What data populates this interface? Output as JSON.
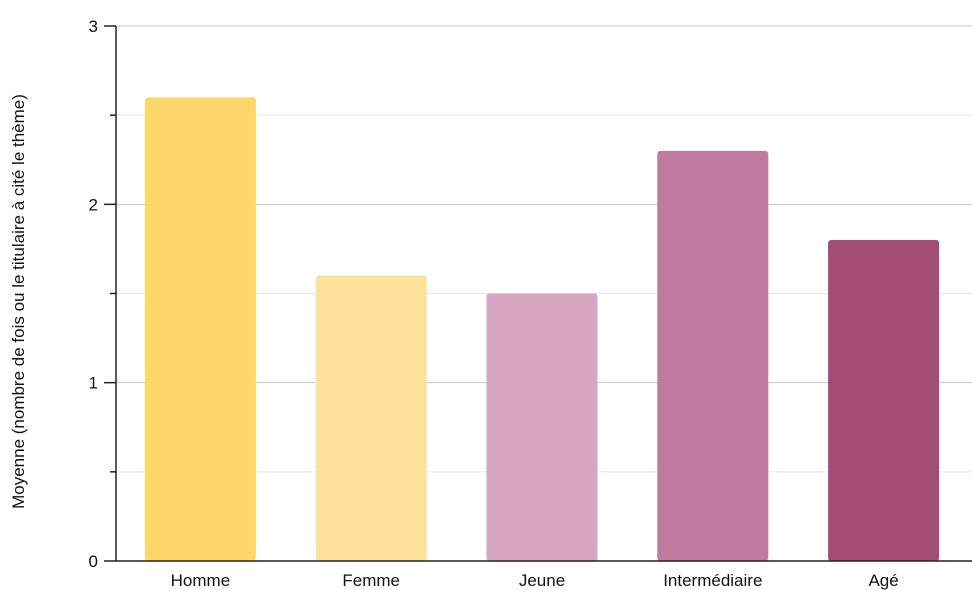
{
  "chart_data": {
    "type": "bar",
    "title": "",
    "xlabel": "",
    "ylabel": "Moyenne (nombre de fois ou le titulaire à cité le thème)",
    "categories": [
      "Homme",
      "Femme",
      "Jeune",
      "Intermédiaire",
      "Agé"
    ],
    "values": [
      2.6,
      1.6,
      1.5,
      2.3,
      1.8
    ],
    "colors": [
      "#fdd76a",
      "#fde39a",
      "#d6a5bf",
      "#c07a9f",
      "#a24c76"
    ],
    "ylim": [
      0,
      3
    ],
    "yticks": [
      "0",
      "1",
      "2",
      "3"
    ],
    "minor_gridlines": true,
    "grid": true,
    "legend": "none"
  }
}
